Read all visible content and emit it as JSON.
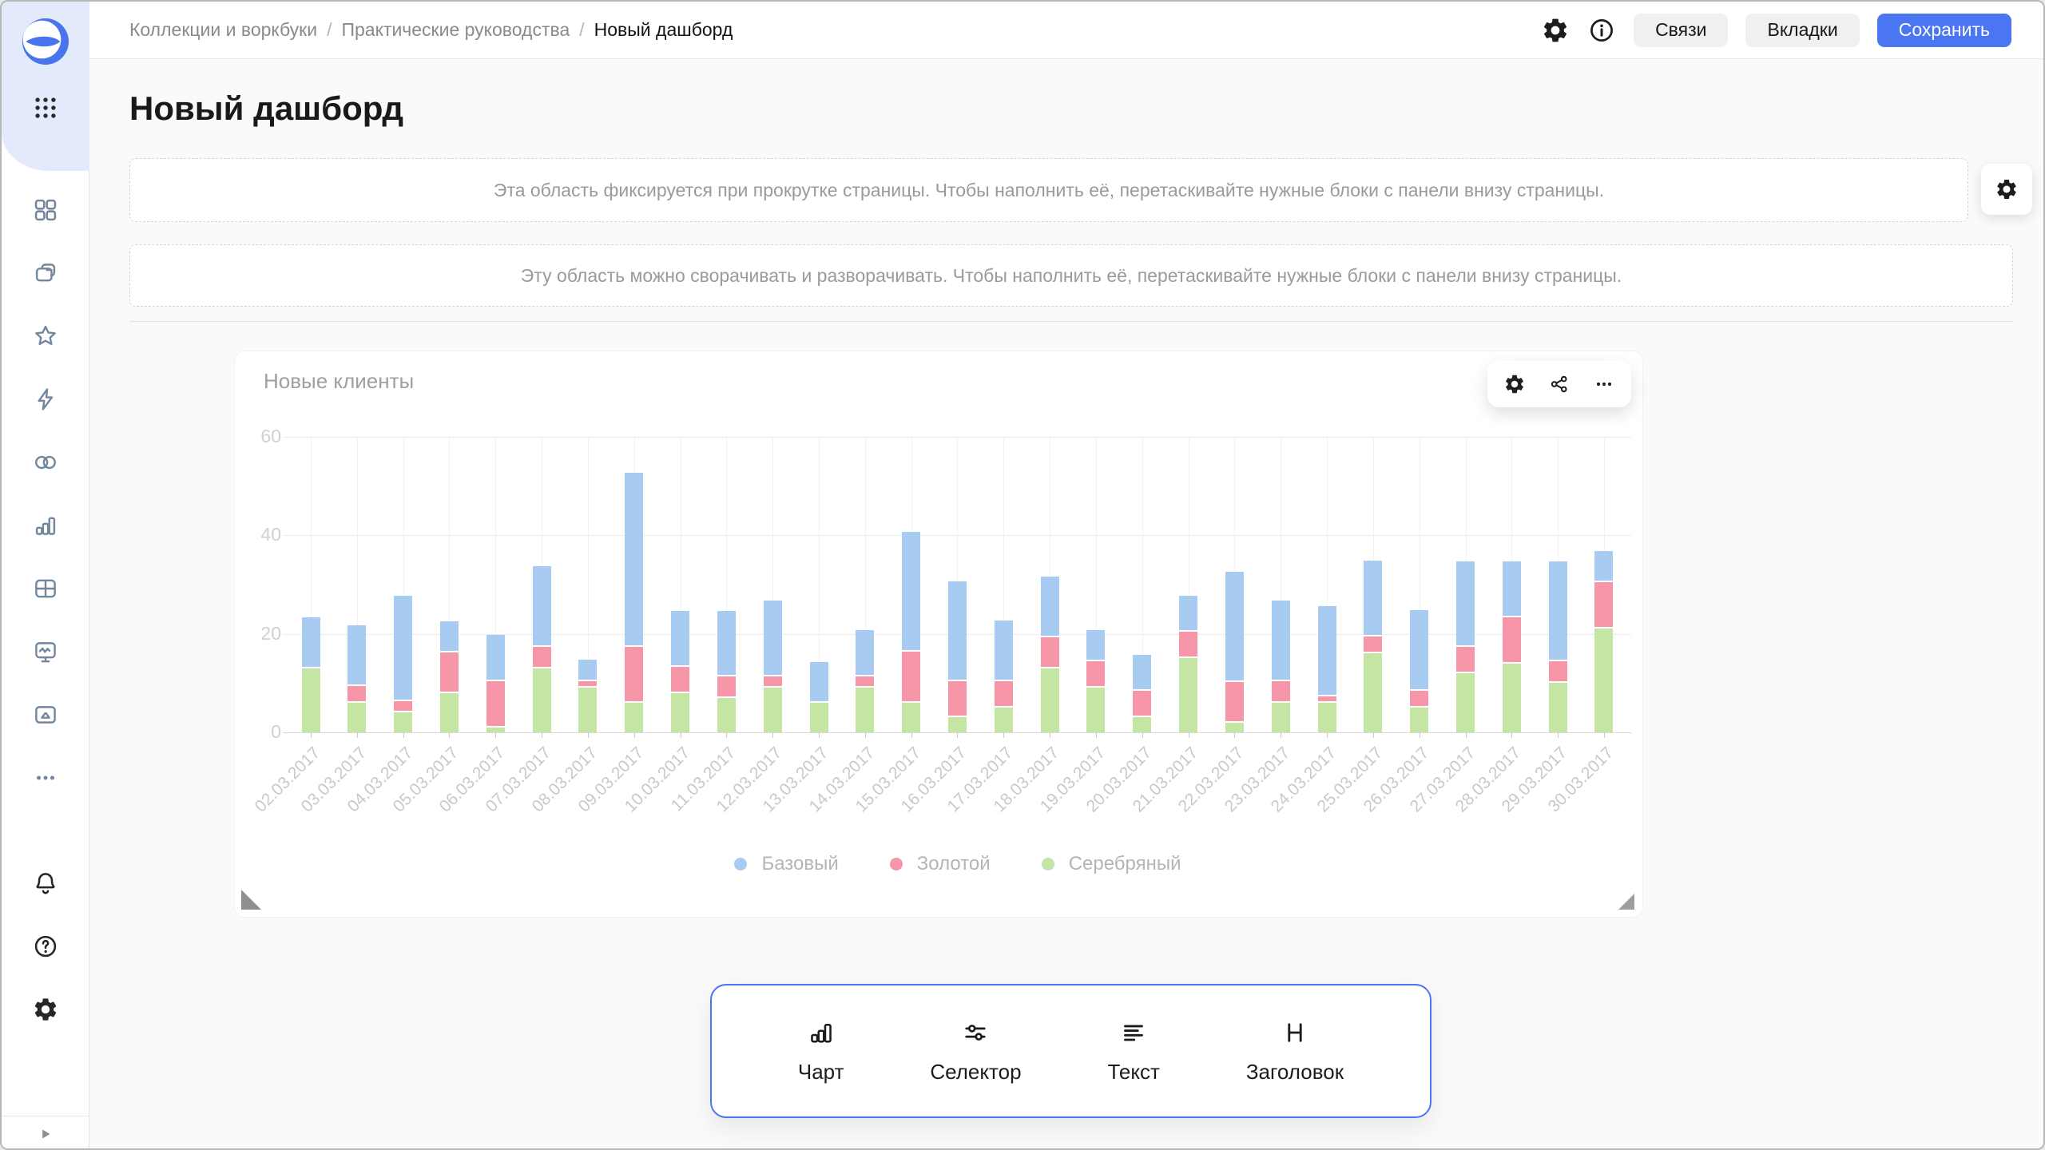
{
  "header": {
    "breadcrumb": [
      "Коллекции и воркбуки",
      "Практические руководства",
      "Новый дашборд"
    ],
    "separator": "/",
    "icons": [
      "settings-icon",
      "info-icon"
    ],
    "buttons": {
      "links": "Связи",
      "tabs": "Вкладки",
      "save": "Сохранить"
    }
  },
  "page": {
    "title": "Новый дашборд"
  },
  "placeholders": {
    "fixed": "Эта область фиксируется при прокрутке страницы. Чтобы наполнить её, перетаскивайте нужные блоки с панели внизу страницы.",
    "collapsible": "Эту область можно сворачивать и разворачивать. Чтобы наполнить её, перетаскивайте нужные блоки с панели внизу страницы."
  },
  "sidebar": {
    "nav_items": [
      {
        "name": "overview",
        "icon": "grid-icon"
      },
      {
        "name": "collections",
        "icon": "collections-icon"
      },
      {
        "name": "favorites",
        "icon": "star-icon"
      },
      {
        "name": "connections",
        "icon": "bolt-icon"
      },
      {
        "name": "datasets",
        "icon": "circles-icon"
      },
      {
        "name": "charts",
        "icon": "chart-icon"
      },
      {
        "name": "tables",
        "icon": "table-icon"
      },
      {
        "name": "dashboards",
        "icon": "monitor-icon"
      },
      {
        "name": "storage",
        "icon": "folder-icon"
      },
      {
        "name": "more",
        "icon": "more-icon"
      }
    ],
    "tool_items": [
      {
        "name": "notifications",
        "icon": "bell-icon"
      },
      {
        "name": "help",
        "icon": "help-icon"
      },
      {
        "name": "settings",
        "icon": "gear-icon"
      }
    ]
  },
  "widget": {
    "title": "Новые клиенты",
    "toolbar_icons": [
      "settings-icon",
      "links-icon",
      "more-icon"
    ]
  },
  "chart_data": {
    "type": "bar",
    "stacked": true,
    "title": "Новые клиенты",
    "categories": [
      "02.03.2017",
      "03.03.2017",
      "04.03.2017",
      "05.03.2017",
      "06.03.2017",
      "07.03.2017",
      "08.03.2017",
      "09.03.2017",
      "10.03.2017",
      "11.03.2017",
      "12.03.2017",
      "13.03.2017",
      "14.03.2017",
      "15.03.2017",
      "16.03.2017",
      "17.03.2017",
      "18.03.2017",
      "19.03.2017",
      "20.03.2017",
      "21.03.2017",
      "22.03.2017",
      "23.03.2017",
      "24.03.2017",
      "25.03.2017",
      "26.03.2017",
      "27.03.2017",
      "28.03.2017",
      "29.03.2017",
      "30.03.2017"
    ],
    "series": [
      {
        "name": "Базовый",
        "color": "#a7cbf1",
        "values": [
          10,
          12,
          21,
          6,
          9,
          16,
          4,
          35,
          11,
          13,
          15,
          8,
          9,
          24,
          20,
          12,
          12,
          6,
          7,
          7,
          22,
          16,
          18,
          15,
          16,
          17,
          11,
          20,
          6
        ]
      },
      {
        "name": "Золотой",
        "color": "#f795a9",
        "values": [
          0,
          3,
          2,
          8,
          9,
          4,
          1,
          11,
          5,
          4,
          2,
          0,
          2,
          10,
          7,
          5,
          6,
          5,
          5,
          5,
          8,
          4,
          1,
          3,
          3,
          5,
          9,
          4,
          9
        ]
      },
      {
        "name": "Серебряный",
        "color": "#c5e5a4",
        "values": [
          13,
          6,
          4,
          8,
          1,
          13,
          9,
          6,
          8,
          7,
          9,
          6,
          9,
          6,
          3,
          5,
          13,
          9,
          3,
          15,
          2,
          6,
          6,
          16,
          5,
          12,
          14,
          10,
          21
        ]
      }
    ],
    "stack_order_bottom_to_top": [
      "Серебряный",
      "Золотой",
      "Базовый"
    ],
    "ylim": [
      0,
      60
    ],
    "yticks": [
      0,
      20,
      40,
      60
    ],
    "xlabel": "",
    "ylabel": "",
    "grid": true,
    "x_tick_rotation": -45,
    "legend_position": "bottom"
  },
  "bottom_panel": {
    "items": [
      {
        "label": "Чарт",
        "icon": "chart-icon"
      },
      {
        "label": "Селектор",
        "icon": "selector-icon"
      },
      {
        "label": "Текст",
        "icon": "text-icon"
      },
      {
        "label": "Заголовок",
        "icon": "heading-icon"
      }
    ]
  },
  "colors": {
    "accent": "#4a76f1",
    "sidebar_blob": "#e3eafc",
    "page_bg": "#fafafa"
  }
}
